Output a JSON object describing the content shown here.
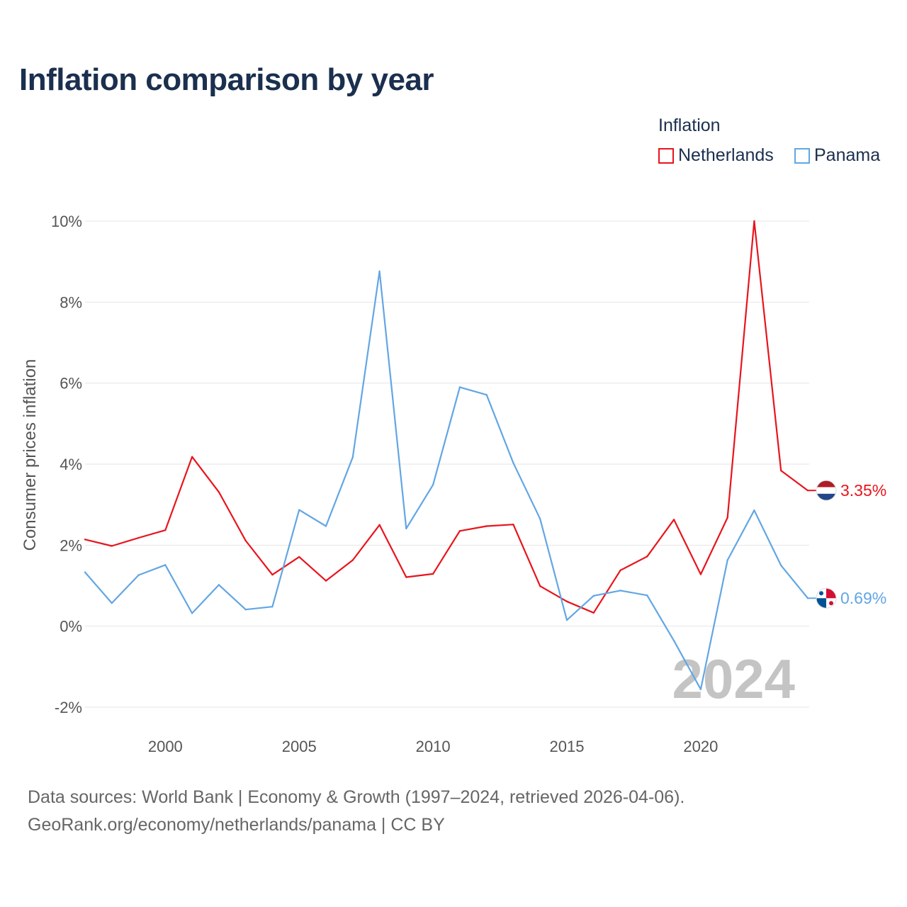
{
  "chart_data": {
    "type": "line",
    "title": "Inflation comparison by year",
    "legend_title": "Inflation",
    "legend_position": "top-right",
    "ylabel": "Consumer prices inflation",
    "xlabel": "",
    "xlim": [
      1997,
      2024
    ],
    "ylim": [
      -2,
      10
    ],
    "x_ticks": [
      2000,
      2005,
      2010,
      2015,
      2020
    ],
    "y_ticks": [
      -2,
      0,
      2,
      4,
      6,
      8,
      10
    ],
    "y_tick_labels": [
      "-2%",
      "0%",
      "2%",
      "4%",
      "6%",
      "8%",
      "10%"
    ],
    "grid": true,
    "watermark_year": "2024",
    "x": [
      1997,
      1998,
      1999,
      2000,
      2001,
      2002,
      2003,
      2004,
      2005,
      2006,
      2007,
      2008,
      2009,
      2010,
      2011,
      2012,
      2013,
      2014,
      2015,
      2016,
      2017,
      2018,
      2019,
      2020,
      2021,
      2022,
      2023,
      2024
    ],
    "series": [
      {
        "name": "Netherlands",
        "color": "#e8141c",
        "end_label": "3.35%",
        "values": [
          2.14,
          1.98,
          2.18,
          2.37,
          4.18,
          3.31,
          2.11,
          1.27,
          1.71,
          1.12,
          1.63,
          2.5,
          1.21,
          1.29,
          2.35,
          2.47,
          2.51,
          0.99,
          0.61,
          0.33,
          1.38,
          1.72,
          2.63,
          1.28,
          2.68,
          10.0,
          3.84,
          3.35
        ]
      },
      {
        "name": "Panama",
        "color": "#62a6e4",
        "end_label": "0.69%",
        "values": [
          1.33,
          0.57,
          1.26,
          1.51,
          0.32,
          1.02,
          0.41,
          0.48,
          2.87,
          2.47,
          4.17,
          8.76,
          2.41,
          3.49,
          5.9,
          5.71,
          4.03,
          2.65,
          0.15,
          0.75,
          0.88,
          0.76,
          -0.36,
          -1.56,
          1.63,
          2.86,
          1.5,
          0.69
        ]
      }
    ]
  },
  "footer": {
    "line1": "Data sources: World Bank | Economy & Growth (1997–2024, retrieved 2026-04-06).",
    "line2": "GeoRank.org/economy/netherlands/panama | CC BY"
  },
  "colors": {
    "title": "#1b2f4e",
    "grid": "#e6e6e6",
    "tick": "#555555",
    "watermark": "#c4c4c4",
    "footer": "#666666"
  },
  "icons": {
    "netherlands_flag": "netherlands-flag-icon",
    "panama_flag": "panama-flag-icon"
  }
}
